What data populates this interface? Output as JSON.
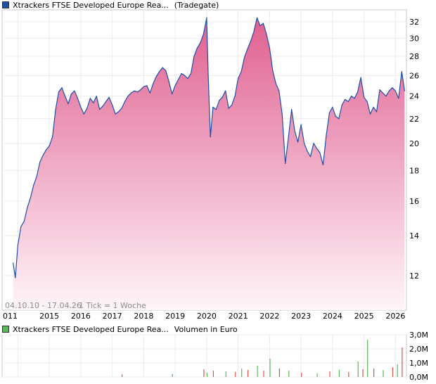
{
  "chart_data": [
    {
      "type": "area",
      "title": "Xtrackers FTSE Developed Europe Rea...",
      "subtitle": "(Tradegate)",
      "footnote_range": "04.10.10 - 17.04.26",
      "footnote_tick": "1 Tick = 1 Woche",
      "xlabel": "",
      "ylabel": "",
      "log_scale": true,
      "ylim": [
        10.5,
        33.5
      ],
      "y_ticks": [
        12,
        14,
        16,
        18,
        20,
        22,
        24,
        26,
        28,
        30,
        32
      ],
      "x_ticks": [
        "011",
        "2015",
        "2016",
        "2017",
        "2018",
        "2019",
        "2020",
        "2021",
        "2022",
        "2023",
        "2024",
        "2025",
        "2026"
      ],
      "grid": true,
      "legend": "top-left",
      "colors": {
        "line": "#1f4fa8",
        "fill_top": "#e06090",
        "fill_bottom": "#ffffff",
        "legend_swatch": "#1f4fa8"
      },
      "series": [
        {
          "name": "Xtrackers FTSE Developed Europe Rea...",
          "x": [
            2013.85,
            2013.92,
            2014.0,
            2014.1,
            2014.2,
            2014.3,
            2014.4,
            2014.5,
            2014.6,
            2014.7,
            2014.8,
            2014.9,
            2015.0,
            2015.1,
            2015.2,
            2015.3,
            2015.4,
            2015.5,
            2015.6,
            2015.7,
            2015.8,
            2015.9,
            2016.0,
            2016.1,
            2016.2,
            2016.3,
            2016.4,
            2016.5,
            2016.6,
            2016.7,
            2016.8,
            2016.9,
            2017.0,
            2017.1,
            2017.2,
            2017.3,
            2017.4,
            2017.5,
            2017.6,
            2017.7,
            2017.8,
            2017.9,
            2018.0,
            2018.1,
            2018.2,
            2018.3,
            2018.4,
            2018.5,
            2018.6,
            2018.7,
            2018.8,
            2018.9,
            2019.0,
            2019.1,
            2019.2,
            2019.3,
            2019.4,
            2019.5,
            2019.6,
            2019.7,
            2019.8,
            2019.9,
            2020.0,
            2020.05,
            2020.12,
            2020.2,
            2020.3,
            2020.4,
            2020.5,
            2020.6,
            2020.7,
            2020.8,
            2020.9,
            2021.0,
            2021.1,
            2021.2,
            2021.3,
            2021.4,
            2021.5,
            2021.6,
            2021.7,
            2021.8,
            2021.9,
            2022.0,
            2022.1,
            2022.2,
            2022.3,
            2022.4,
            2022.5,
            2022.6,
            2022.7,
            2022.8,
            2022.9,
            2023.0,
            2023.1,
            2023.2,
            2023.3,
            2023.4,
            2023.5,
            2023.6,
            2023.7,
            2023.8,
            2023.9,
            2024.0,
            2024.1,
            2024.2,
            2024.3,
            2024.4,
            2024.5,
            2024.6,
            2024.7,
            2024.8,
            2024.9,
            2025.0,
            2025.1,
            2025.2,
            2025.3,
            2025.4,
            2025.5,
            2025.6,
            2025.7,
            2025.8,
            2025.9,
            2026.0,
            2026.1,
            2026.2,
            2026.29
          ],
          "values": [
            12.6,
            11.9,
            13.5,
            14.5,
            14.8,
            15.6,
            16.2,
            17.0,
            17.6,
            18.6,
            19.1,
            19.5,
            19.8,
            20.5,
            22.8,
            24.4,
            24.8,
            24.0,
            23.3,
            24.2,
            24.5,
            23.8,
            23.0,
            22.4,
            22.9,
            23.8,
            23.4,
            24.0,
            22.8,
            23.1,
            23.5,
            23.9,
            23.2,
            22.4,
            22.6,
            22.9,
            23.5,
            24.0,
            24.3,
            24.5,
            24.4,
            24.6,
            24.9,
            25.0,
            24.3,
            25.2,
            25.9,
            26.4,
            26.8,
            26.5,
            25.4,
            24.2,
            25.0,
            25.6,
            26.2,
            26.0,
            25.7,
            26.2,
            28.0,
            28.9,
            29.5,
            30.5,
            32.5,
            26.0,
            20.5,
            23.0,
            22.8,
            23.6,
            23.9,
            24.5,
            22.9,
            23.2,
            24.0,
            25.7,
            26.4,
            27.9,
            28.8,
            29.7,
            30.8,
            32.5,
            31.5,
            31.8,
            30.5,
            28.9,
            26.5,
            25.2,
            24.5,
            22.4,
            18.5,
            20.5,
            22.8,
            21.0,
            20.1,
            21.5,
            20.0,
            19.4,
            19.0,
            20.0,
            19.6,
            19.3,
            18.4,
            20.6,
            22.5,
            23.0,
            22.2,
            22.0,
            23.2,
            23.7,
            23.5,
            24.0,
            23.8,
            24.4,
            25.8,
            23.9,
            23.5,
            22.4,
            23.0,
            22.6,
            24.6,
            24.3,
            24.0,
            24.5,
            24.8,
            24.5,
            23.8,
            26.4,
            24.5
          ]
        }
      ]
    },
    {
      "type": "bar",
      "title": "Xtrackers FTSE Developed Europe Rea...",
      "subtitle": "Volumen in Euro",
      "xlabel": "",
      "ylabel": "",
      "ylim": [
        0,
        3.0
      ],
      "y_ticks": [
        "3,0M",
        "2,0M",
        "1,0M",
        "0,0M"
      ],
      "grid": true,
      "legend": "top-left",
      "colors": {
        "bar_up": "#5cb85c",
        "bar_down": "#d9534f",
        "legend_swatch": "#5cb85c"
      },
      "spike_x": [
        2017.3,
        2018.9,
        2019.9,
        2020.0,
        2020.2,
        2020.6,
        2020.9,
        2021.1,
        2021.3,
        2021.6,
        2021.8,
        2022.0,
        2022.3,
        2022.6,
        2023.0,
        2023.5,
        2023.9,
        2024.2,
        2024.5,
        2024.8,
        2024.95,
        2025.1,
        2025.3,
        2025.6,
        2025.9,
        2026.05,
        2026.2
      ],
      "spike_values": [
        0.18,
        0.22,
        0.55,
        0.3,
        0.45,
        0.4,
        0.35,
        0.6,
        0.5,
        0.8,
        0.45,
        1.3,
        0.6,
        0.45,
        0.3,
        0.25,
        0.4,
        0.5,
        0.35,
        1.1,
        0.55,
        2.65,
        0.6,
        0.5,
        0.7,
        0.9,
        2.1
      ]
    }
  ]
}
